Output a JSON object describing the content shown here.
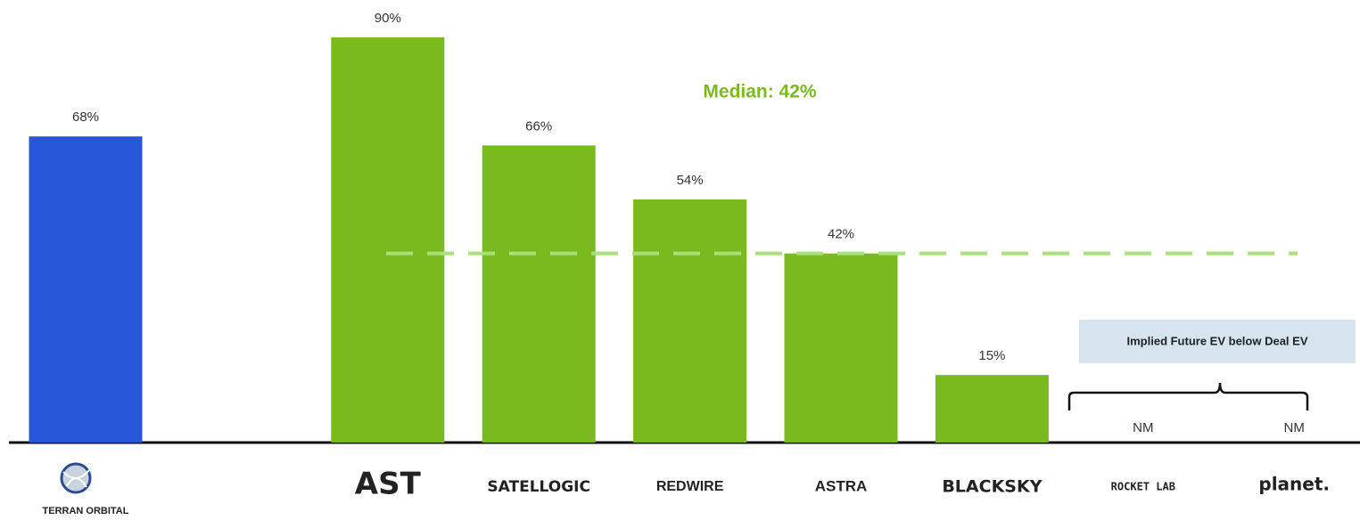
{
  "chart_data": {
    "type": "bar",
    "categories": [
      "TERRAN ORBITAL",
      "AST",
      "SATELLOGIC",
      "REDWIRE",
      "ASTRA",
      "BLACKSKY",
      "ROCKET LAB",
      "planet."
    ],
    "values": [
      68,
      90,
      66,
      54,
      42,
      15,
      null,
      null
    ],
    "value_labels": [
      "68%",
      "90%",
      "66%",
      "54%",
      "42%",
      "15%",
      "NM",
      "NM"
    ],
    "colors": [
      "#2756d8",
      "#7aba1f",
      "#7aba1f",
      "#7aba1f",
      "#7aba1f",
      "#7aba1f",
      "#7aba1f",
      "#7aba1f"
    ],
    "median": 42,
    "median_label": "Median: 42%",
    "median_color": "#a8e07a",
    "annotation": "Implied Future EV below Deal EV"
  }
}
